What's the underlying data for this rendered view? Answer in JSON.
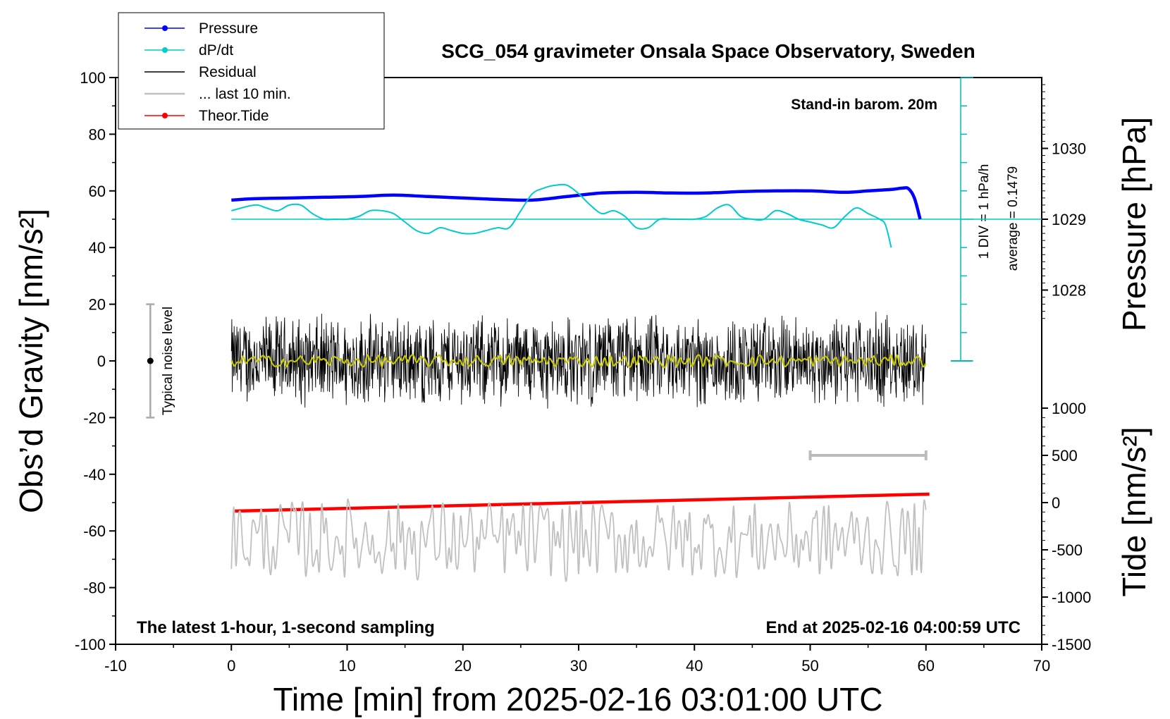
{
  "chart_data": {
    "type": "line",
    "title": "SCG_054 gravimeter Onsala Space Observatory, Sweden",
    "subtitle_left": "The latest 1-hour, 1-second sampling",
    "subtitle_right": "End at 2025-02-16 04:00:59 UTC",
    "barometer_note": "Stand-in barom. 20m",
    "xlabel": "Time [min] from 2025-02-16 03:01:00 UTC",
    "xlim": [
      -10,
      70
    ],
    "xticks": [
      -10,
      0,
      10,
      20,
      30,
      40,
      50,
      60,
      70
    ],
    "ylabel_left": "Obs’d Gravity [nm/s²]",
    "ylim_left": [
      -100,
      100
    ],
    "yticks_left": [
      -100,
      -80,
      -60,
      -40,
      -20,
      0,
      20,
      40,
      60,
      80,
      100
    ],
    "ylabel_pressure": "Pressure [hPa]",
    "pressure_ticks": [
      1028,
      1029,
      1030
    ],
    "ylabel_tide": "Tide [nm/s²]",
    "tide_ticks": [
      -1500,
      -1000,
      -500,
      0,
      500,
      1000
    ],
    "dpdt_scale": "1 DIV = 1 hPa/h",
    "dpdt_average": "average = 0.1479",
    "noise_label": "Typical noise level",
    "noise_bar": {
      "x": -7,
      "center": 0,
      "half_range": 20
    },
    "gray_bar_minutes": [
      50,
      60
    ],
    "legend": [
      {
        "label": "Pressure",
        "color": "#0000ff",
        "marker": true
      },
      {
        "label": "dP/dt",
        "color": "#00cccc",
        "marker": true
      },
      {
        "label": "Residual",
        "color": "#000000",
        "marker": false
      },
      {
        "label": "... last 10 min.",
        "color": "#c0c0c0",
        "marker": false
      },
      {
        "label": "Theor.Tide",
        "color": "#ff0000",
        "marker": true
      }
    ],
    "series": [
      {
        "name": "Pressure",
        "axis": "pressure_hPa",
        "color": "#0000ff",
        "x": [
          0,
          2,
          5,
          8,
          11,
          14,
          17,
          20,
          23,
          26,
          29,
          32,
          35,
          38,
          41,
          44,
          47,
          50,
          53,
          55,
          57,
          58,
          58.5,
          59,
          59.5
        ],
        "y": [
          1029.27,
          1029.29,
          1029.3,
          1029.31,
          1029.32,
          1029.34,
          1029.32,
          1029.3,
          1029.28,
          1029.27,
          1029.32,
          1029.37,
          1029.38,
          1029.37,
          1029.37,
          1029.39,
          1029.4,
          1029.4,
          1029.38,
          1029.4,
          1029.42,
          1029.44,
          1029.43,
          1029.3,
          1029.0
        ]
      },
      {
        "name": "dP/dt",
        "axis": "gravity_units",
        "color": "#00cccc",
        "x": [
          0,
          2,
          3,
          4,
          5,
          6,
          7,
          8,
          9,
          10,
          11,
          12,
          13,
          14,
          15,
          16,
          17,
          18,
          19,
          20,
          21,
          22,
          23,
          24,
          25,
          26,
          27,
          28,
          29,
          30,
          31,
          32,
          33,
          34,
          35,
          36,
          37,
          38,
          39,
          40,
          41,
          42,
          43,
          44,
          45,
          46,
          47,
          48,
          49,
          50,
          51,
          52,
          53,
          54,
          55,
          56,
          56.5,
          57
        ],
        "y": [
          53,
          55,
          54,
          53,
          55,
          55,
          52,
          50,
          50,
          50,
          51,
          53,
          53,
          52,
          49,
          46,
          45,
          47,
          46,
          45,
          45,
          46,
          47,
          47,
          53,
          59,
          61,
          62,
          62,
          59,
          55,
          52,
          53,
          51,
          47,
          47,
          50,
          50,
          50,
          50,
          51,
          54,
          55,
          51,
          50,
          50,
          53,
          52,
          50,
          49,
          48,
          47,
          51,
          54,
          52,
          50,
          48,
          40
        ]
      },
      {
        "name": "Residual",
        "axis": "gravity_units",
        "color": "#000000",
        "x_range": [
          0,
          60
        ],
        "center": 0,
        "spread": 18
      },
      {
        "name": "Residual smoothed",
        "axis": "gravity_units",
        "color": "#c8c800",
        "x_range": [
          0,
          60
        ],
        "center": 0,
        "spread": 2
      },
      {
        "name": "Theor.Tide",
        "axis": "gravity_units",
        "color": "#ff0000",
        "x": [
          0.3,
          60.3
        ],
        "y": [
          -53,
          -47
        ]
      },
      {
        "name": "... last 10 min.",
        "axis": "gravity_units",
        "color": "#c0c0c0",
        "x_range": [
          0,
          60
        ],
        "center": -63,
        "spread": 13
      }
    ]
  }
}
